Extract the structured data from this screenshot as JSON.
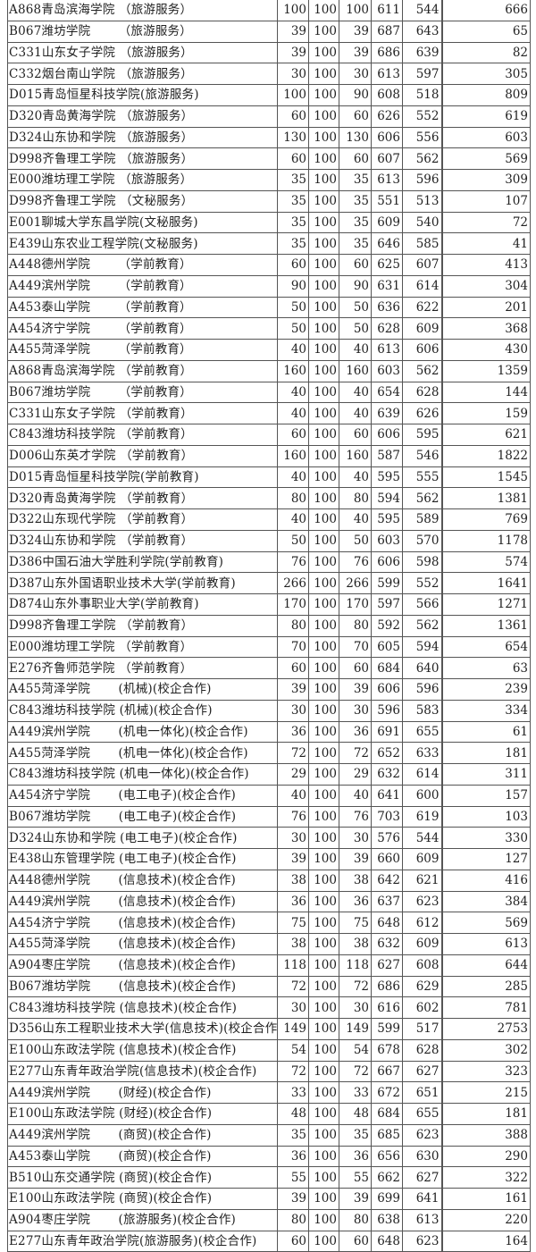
{
  "rows": [
    [
      "A868青岛滨海学院 （旅游服务）",
      "100",
      "100",
      "100",
      "611",
      "544",
      "666"
    ],
    [
      "B067潍坊学院       （旅游服务）",
      "39",
      "100",
      "39",
      "687",
      "643",
      "65"
    ],
    [
      "C331山东女子学院 （旅游服务）",
      "39",
      "100",
      "39",
      "686",
      "639",
      "82"
    ],
    [
      "C332烟台南山学院 （旅游服务）",
      "30",
      "100",
      "30",
      "613",
      "597",
      "305"
    ],
    [
      "D015青岛恒星科技学院(旅游服务)",
      "100",
      "100",
      "90",
      "608",
      "518",
      "809"
    ],
    [
      "D320青岛黄海学院 （旅游服务）",
      "60",
      "100",
      "60",
      "626",
      "552",
      "619"
    ],
    [
      "D324山东协和学院 （旅游服务）",
      "130",
      "100",
      "130",
      "606",
      "556",
      "603"
    ],
    [
      "D998齐鲁理工学院 （旅游服务）",
      "60",
      "100",
      "60",
      "607",
      "562",
      "569"
    ],
    [
      "E000潍坊理工学院 （旅游服务）",
      "35",
      "100",
      "35",
      "613",
      "596",
      "309"
    ],
    [
      "D998齐鲁理工学院 （文秘服务）",
      "35",
      "100",
      "35",
      "551",
      "513",
      "107"
    ],
    [
      "E001聊城大学东昌学院(文秘服务)",
      "35",
      "100",
      "35",
      "609",
      "540",
      "72"
    ],
    [
      "E439山东农业工程学院(文秘服务)",
      "35",
      "100",
      "35",
      "646",
      "585",
      "41"
    ],
    [
      "A448德州学院       （学前教育）",
      "60",
      "100",
      "60",
      "625",
      "607",
      "413"
    ],
    [
      "A449滨州学院       （学前教育）",
      "90",
      "100",
      "90",
      "631",
      "614",
      "304"
    ],
    [
      "A453泰山学院       （学前教育）",
      "50",
      "100",
      "50",
      "636",
      "622",
      "201"
    ],
    [
      "A454济宁学院       （学前教育）",
      "50",
      "100",
      "50",
      "628",
      "609",
      "368"
    ],
    [
      "A455菏泽学院       （学前教育）",
      "40",
      "100",
      "40",
      "613",
      "606",
      "430"
    ],
    [
      "A868青岛滨海学院 （学前教育）",
      "160",
      "100",
      "160",
      "603",
      "562",
      "1359"
    ],
    [
      "B067潍坊学院       （学前教育）",
      "40",
      "100",
      "40",
      "654",
      "628",
      "144"
    ],
    [
      "C331山东女子学院 （学前教育）",
      "40",
      "100",
      "40",
      "639",
      "626",
      "159"
    ],
    [
      "C843潍坊科技学院 （学前教育）",
      "60",
      "100",
      "60",
      "606",
      "595",
      "621"
    ],
    [
      "D006山东英才学院 （学前教育）",
      "160",
      "100",
      "160",
      "587",
      "546",
      "1822"
    ],
    [
      "D015青岛恒星科技学院(学前教育)",
      "40",
      "100",
      "40",
      "595",
      "555",
      "1545"
    ],
    [
      "D320青岛黄海学院 （学前教育）",
      "80",
      "100",
      "80",
      "594",
      "562",
      "1381"
    ],
    [
      "D322山东现代学院 （学前教育）",
      "40",
      "100",
      "40",
      "595",
      "589",
      "769"
    ],
    [
      "D324山东协和学院 （学前教育）",
      "50",
      "100",
      "50",
      "603",
      "570",
      "1178"
    ],
    [
      "D386中国石油大学胜利学院(学前教育)",
      "76",
      "100",
      "76",
      "606",
      "598",
      "574"
    ],
    [
      "D387山东外国语职业技术大学(学前教育)",
      "266",
      "100",
      "266",
      "599",
      "552",
      "1641"
    ],
    [
      "D874山东外事职业大学(学前教育)",
      "170",
      "100",
      "170",
      "597",
      "566",
      "1271"
    ],
    [
      "D998齐鲁理工学院 （学前教育）",
      "80",
      "100",
      "80",
      "592",
      "562",
      "1361"
    ],
    [
      "E000潍坊理工学院 （学前教育）",
      "70",
      "100",
      "70",
      "605",
      "594",
      "654"
    ],
    [
      "E276齐鲁师范学院 （学前教育）",
      "60",
      "100",
      "60",
      "684",
      "640",
      "63"
    ],
    [
      "A455菏泽学院       (机械)(校企合作)",
      "39",
      "100",
      "39",
      "606",
      "596",
      "239"
    ],
    [
      "C843潍坊科技学院 (机械)(校企合作)",
      "30",
      "100",
      "30",
      "596",
      "583",
      "334"
    ],
    [
      "A449滨州学院       (机电一体化)(校企合作)",
      "36",
      "100",
      "36",
      "691",
      "655",
      "61"
    ],
    [
      "A455菏泽学院       (机电一体化)(校企合作)",
      "72",
      "100",
      "72",
      "652",
      "633",
      "181"
    ],
    [
      "C843潍坊科技学院 (机电一体化)(校企合作)",
      "29",
      "100",
      "29",
      "632",
      "614",
      "311"
    ],
    [
      "A454济宁学院       (电工电子)(校企合作)",
      "40",
      "100",
      "40",
      "641",
      "600",
      "157"
    ],
    [
      "B067潍坊学院       (电工电子)(校企合作)",
      "76",
      "100",
      "76",
      "703",
      "619",
      "103"
    ],
    [
      "D324山东协和学院 (电工电子)(校企合作)",
      "30",
      "100",
      "30",
      "576",
      "544",
      "330"
    ],
    [
      "E438山东管理学院 (电工电子)(校企合作)",
      "39",
      "100",
      "39",
      "660",
      "609",
      "127"
    ],
    [
      "A448德州学院       (信息技术)(校企合作)",
      "38",
      "100",
      "38",
      "642",
      "621",
      "416"
    ],
    [
      "A449滨州学院       (信息技术)(校企合作)",
      "36",
      "100",
      "36",
      "637",
      "623",
      "384"
    ],
    [
      "A454济宁学院       (信息技术)(校企合作)",
      "75",
      "100",
      "75",
      "648",
      "612",
      "569"
    ],
    [
      "A455菏泽学院       (信息技术)(校企合作)",
      "38",
      "100",
      "38",
      "632",
      "609",
      "613"
    ],
    [
      "A904枣庄学院       (信息技术)(校企合作)",
      "118",
      "100",
      "118",
      "627",
      "608",
      "644"
    ],
    [
      "B067潍坊学院       (信息技术)(校企合作)",
      "72",
      "100",
      "72",
      "686",
      "629",
      "285"
    ],
    [
      "C843潍坊科技学院 (信息技术)(校企合作)",
      "30",
      "100",
      "30",
      "616",
      "602",
      "781"
    ],
    [
      "D356山东工程职业技术大学(信息技术)(校企合作",
      "149",
      "100",
      "149",
      "599",
      "517",
      "2753"
    ],
    [
      "E100山东政法学院 (信息技术)(校企合作)",
      "54",
      "100",
      "54",
      "678",
      "628",
      "302"
    ],
    [
      "E277山东青年政治学院(信息技术)(校企合作)",
      "72",
      "100",
      "72",
      "667",
      "627",
      "323"
    ],
    [
      "A449滨州学院       (财经)(校企合作)",
      "33",
      "100",
      "33",
      "672",
      "651",
      "215"
    ],
    [
      "E100山东政法学院 (财经)(校企合作)",
      "48",
      "100",
      "48",
      "684",
      "655",
      "181"
    ],
    [
      "A449滨州学院       (商贸)(校企合作)",
      "35",
      "100",
      "35",
      "685",
      "623",
      "388"
    ],
    [
      "A453泰山学院       (商贸)(校企合作)",
      "36",
      "100",
      "36",
      "656",
      "630",
      "290"
    ],
    [
      "B510山东交通学院 (商贸)(校企合作)",
      "55",
      "100",
      "55",
      "662",
      "627",
      "322"
    ],
    [
      "E100山东政法学院 (商贸)(校企合作)",
      "39",
      "100",
      "39",
      "699",
      "641",
      "161"
    ],
    [
      "A904枣庄学院       (旅游服务)(校企合作)",
      "80",
      "100",
      "80",
      "638",
      "613",
      "220"
    ],
    [
      "E277山东青年政治学院(旅游服务)(校企合作)",
      "60",
      "100",
      "60",
      "648",
      "623",
      "164"
    ]
  ]
}
